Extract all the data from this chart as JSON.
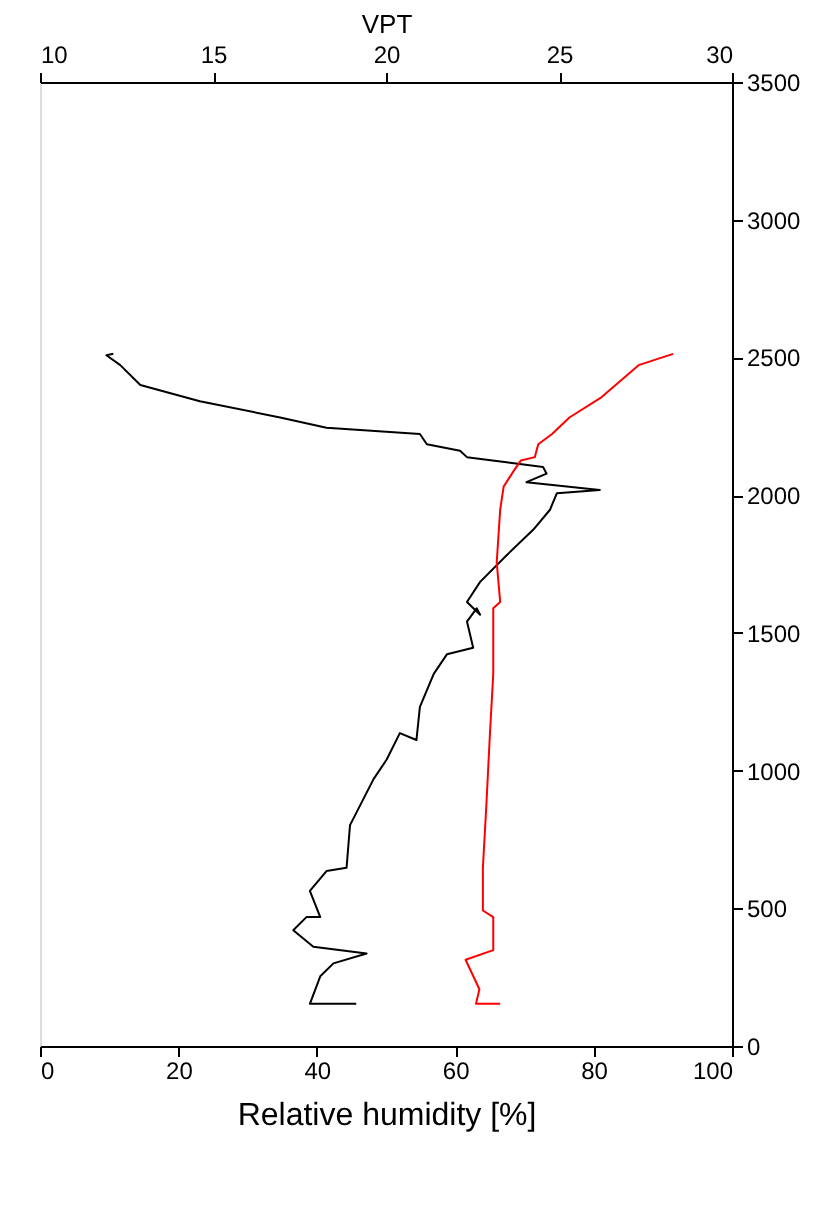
{
  "chart_data": {
    "type": "line",
    "xlabel": "Relative humidity [%]",
    "x2label": "VPT",
    "xlim": [
      0,
      100
    ],
    "xticks": [
      0,
      20,
      40,
      60,
      80,
      100
    ],
    "x2lim": [
      10,
      30
    ],
    "x2ticks": [
      10,
      15,
      20,
      25,
      30
    ],
    "ylim": [
      0,
      3500
    ],
    "yticks": [
      0,
      500,
      1000,
      1500,
      2000,
      2500,
      3000,
      3500
    ],
    "grid": false,
    "marker": "none",
    "line_style": "solid",
    "series": [
      {
        "color": "#000000",
        "x": [
          45.7,
          39.0,
          40.5,
          42.4,
          47.2,
          39.5,
          36.6,
          38.5,
          40.5,
          39.0,
          41.4,
          44.3,
          44.8,
          48.2,
          50.1,
          52.0,
          54.4,
          54.9,
          56.9,
          58.8,
          62.6,
          61.7,
          63.1,
          63.6,
          61.7,
          63.6,
          67.4,
          71.3,
          73.7,
          74.7,
          80.9,
          70.3,
          73.2,
          72.7,
          67.4,
          61.7,
          60.7,
          55.9,
          54.9,
          41.4,
          34.7,
          23.1,
          14.5,
          11.6,
          9.6,
          10.6
        ],
        "values": [
          153,
          153,
          253,
          300,
          336,
          360,
          420,
          468,
          468,
          563,
          635,
          647,
          802,
          969,
          1040,
          1136,
          1111,
          1231,
          1351,
          1422,
          1446,
          1541,
          1589,
          1566,
          1612,
          1685,
          1781,
          1875,
          1947,
          2007,
          2019,
          2047,
          2078,
          2102,
          2119,
          2138,
          2161,
          2185,
          2222,
          2245,
          2282,
          2341,
          2400,
          2472,
          2508,
          2513
        ]
      },
      {
        "color": "#ff0000",
        "axis": "x2",
        "x": [
          23.3,
          22.6,
          22.7,
          22.3,
          23.1,
          23.1,
          22.8,
          22.8,
          22.9,
          23.0,
          23.1,
          23.1,
          23.1,
          23.3,
          23.2,
          23.3,
          23.4,
          23.7,
          23.9,
          24.3,
          24.4,
          24.8,
          25.3,
          26.2,
          27.3,
          28.3
        ],
        "values": [
          153,
          153,
          206,
          313,
          348,
          468,
          492,
          647,
          873,
          1124,
          1351,
          1518,
          1589,
          1612,
          1756,
          1947,
          2031,
          2090,
          2126,
          2138,
          2185,
          2222,
          2282,
          2353,
          2472,
          2513
        ]
      }
    ]
  }
}
